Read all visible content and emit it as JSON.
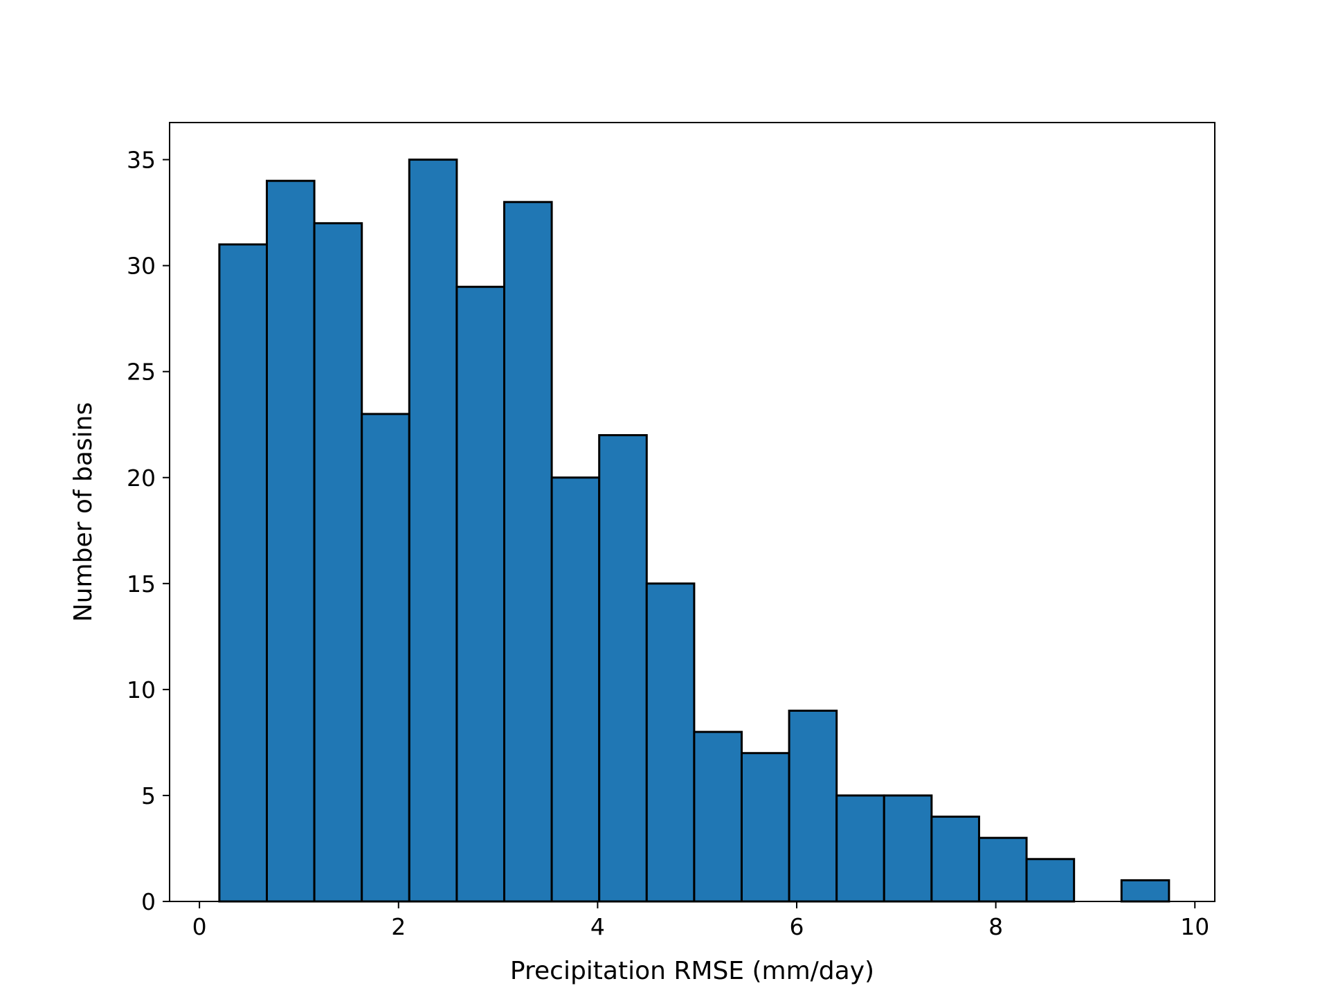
{
  "chart_data": {
    "type": "bar",
    "title": "",
    "xlabel": "Precipitation RMSE (mm/day)",
    "ylabel": "Number of basins",
    "xlim": [
      -0.3,
      10.2
    ],
    "ylim": [
      0,
      36.75
    ],
    "bar_color": "#2077b4",
    "edge_color": "#000000",
    "bin_width": 0.477,
    "bin_starts": [
      0.2,
      0.677,
      1.154,
      1.631,
      2.108,
      2.585,
      3.062,
      3.539,
      4.016,
      4.493,
      4.97,
      5.447,
      5.924,
      6.401,
      6.878,
      7.355,
      7.832,
      8.309,
      8.786,
      9.263
    ],
    "values": [
      31,
      34,
      32,
      23,
      35,
      29,
      33,
      20,
      22,
      15,
      8,
      7,
      9,
      5,
      5,
      4,
      3,
      2,
      0,
      1
    ],
    "x_ticks": [
      0,
      2,
      4,
      6,
      8,
      10
    ],
    "y_ticks": [
      0,
      5,
      10,
      15,
      20,
      25,
      30,
      35
    ],
    "grid": false
  }
}
